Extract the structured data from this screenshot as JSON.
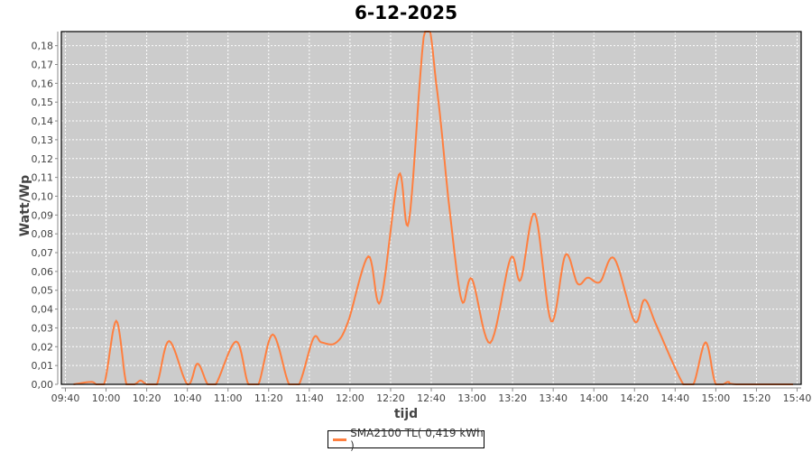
{
  "chart_data": {
    "type": "line",
    "title": "6-12-2025",
    "xlabel": "tijd",
    "ylabel": "Watt/Wp",
    "xlim": [
      "09:38",
      "15:42"
    ],
    "ylim": [
      0,
      0.1875
    ],
    "grid": true,
    "legend_position": "bottom",
    "x_ticks": [
      "09:40",
      "10:00",
      "10:20",
      "10:40",
      "11:00",
      "11:20",
      "11:40",
      "12:00",
      "12:20",
      "12:40",
      "13:00",
      "13:20",
      "13:40",
      "14:00",
      "14:20",
      "14:40",
      "15:00",
      "15:20",
      "15:40"
    ],
    "y_ticks": [
      "0,00",
      "0,01",
      "0,02",
      "0,03",
      "0,04",
      "0,05",
      "0,06",
      "0,07",
      "0,08",
      "0,09",
      "0,10",
      "0,11",
      "0,12",
      "0,13",
      "0,14",
      "0,15",
      "0,16",
      "0,17",
      "0,18"
    ],
    "series": [
      {
        "name": "SMA2100 TL( 0,419 kWh )",
        "color": "#ff7f3f",
        "x": [
          "09:44",
          "09:53",
          "09:59",
          "10:05",
          "10:10",
          "10:14",
          "10:17",
          "10:20",
          "10:25",
          "10:31",
          "10:40",
          "10:45",
          "10:50",
          "10:54",
          "11:04",
          "11:10",
          "11:15",
          "11:22",
          "11:30",
          "11:35",
          "11:42",
          "11:46",
          "11:53",
          "11:59",
          "12:09",
          "12:15",
          "12:24",
          "12:29",
          "12:37",
          "12:43",
          "12:49",
          "12:55",
          "13:00",
          "13:09",
          "13:19",
          "13:24",
          "13:31",
          "13:39",
          "13:46",
          "13:52",
          "13:57",
          "14:03",
          "14:10",
          "14:20",
          "14:25",
          "14:31",
          "14:44",
          "14:49",
          "14:55",
          "15:00",
          "15:06",
          "15:10",
          "15:38"
        ],
        "values": [
          0,
          0.0013,
          0,
          0.0337,
          0,
          0,
          0.002,
          0,
          0,
          0.023,
          0,
          0.011,
          0,
          0,
          0.0228,
          0,
          0,
          0.0265,
          0,
          0,
          0.0244,
          0.0223,
          0.022,
          0.033,
          0.068,
          0.044,
          0.1114,
          0.0866,
          0.19,
          0.155,
          0.093,
          0.0444,
          0.056,
          0.022,
          0.067,
          0.0555,
          0.0906,
          0.0335,
          0.0688,
          0.0535,
          0.0567,
          0.0544,
          0.067,
          0.0335,
          0.045,
          0.0308,
          0,
          0,
          0.0223,
          0,
          0.0013,
          0,
          0
        ]
      }
    ]
  }
}
